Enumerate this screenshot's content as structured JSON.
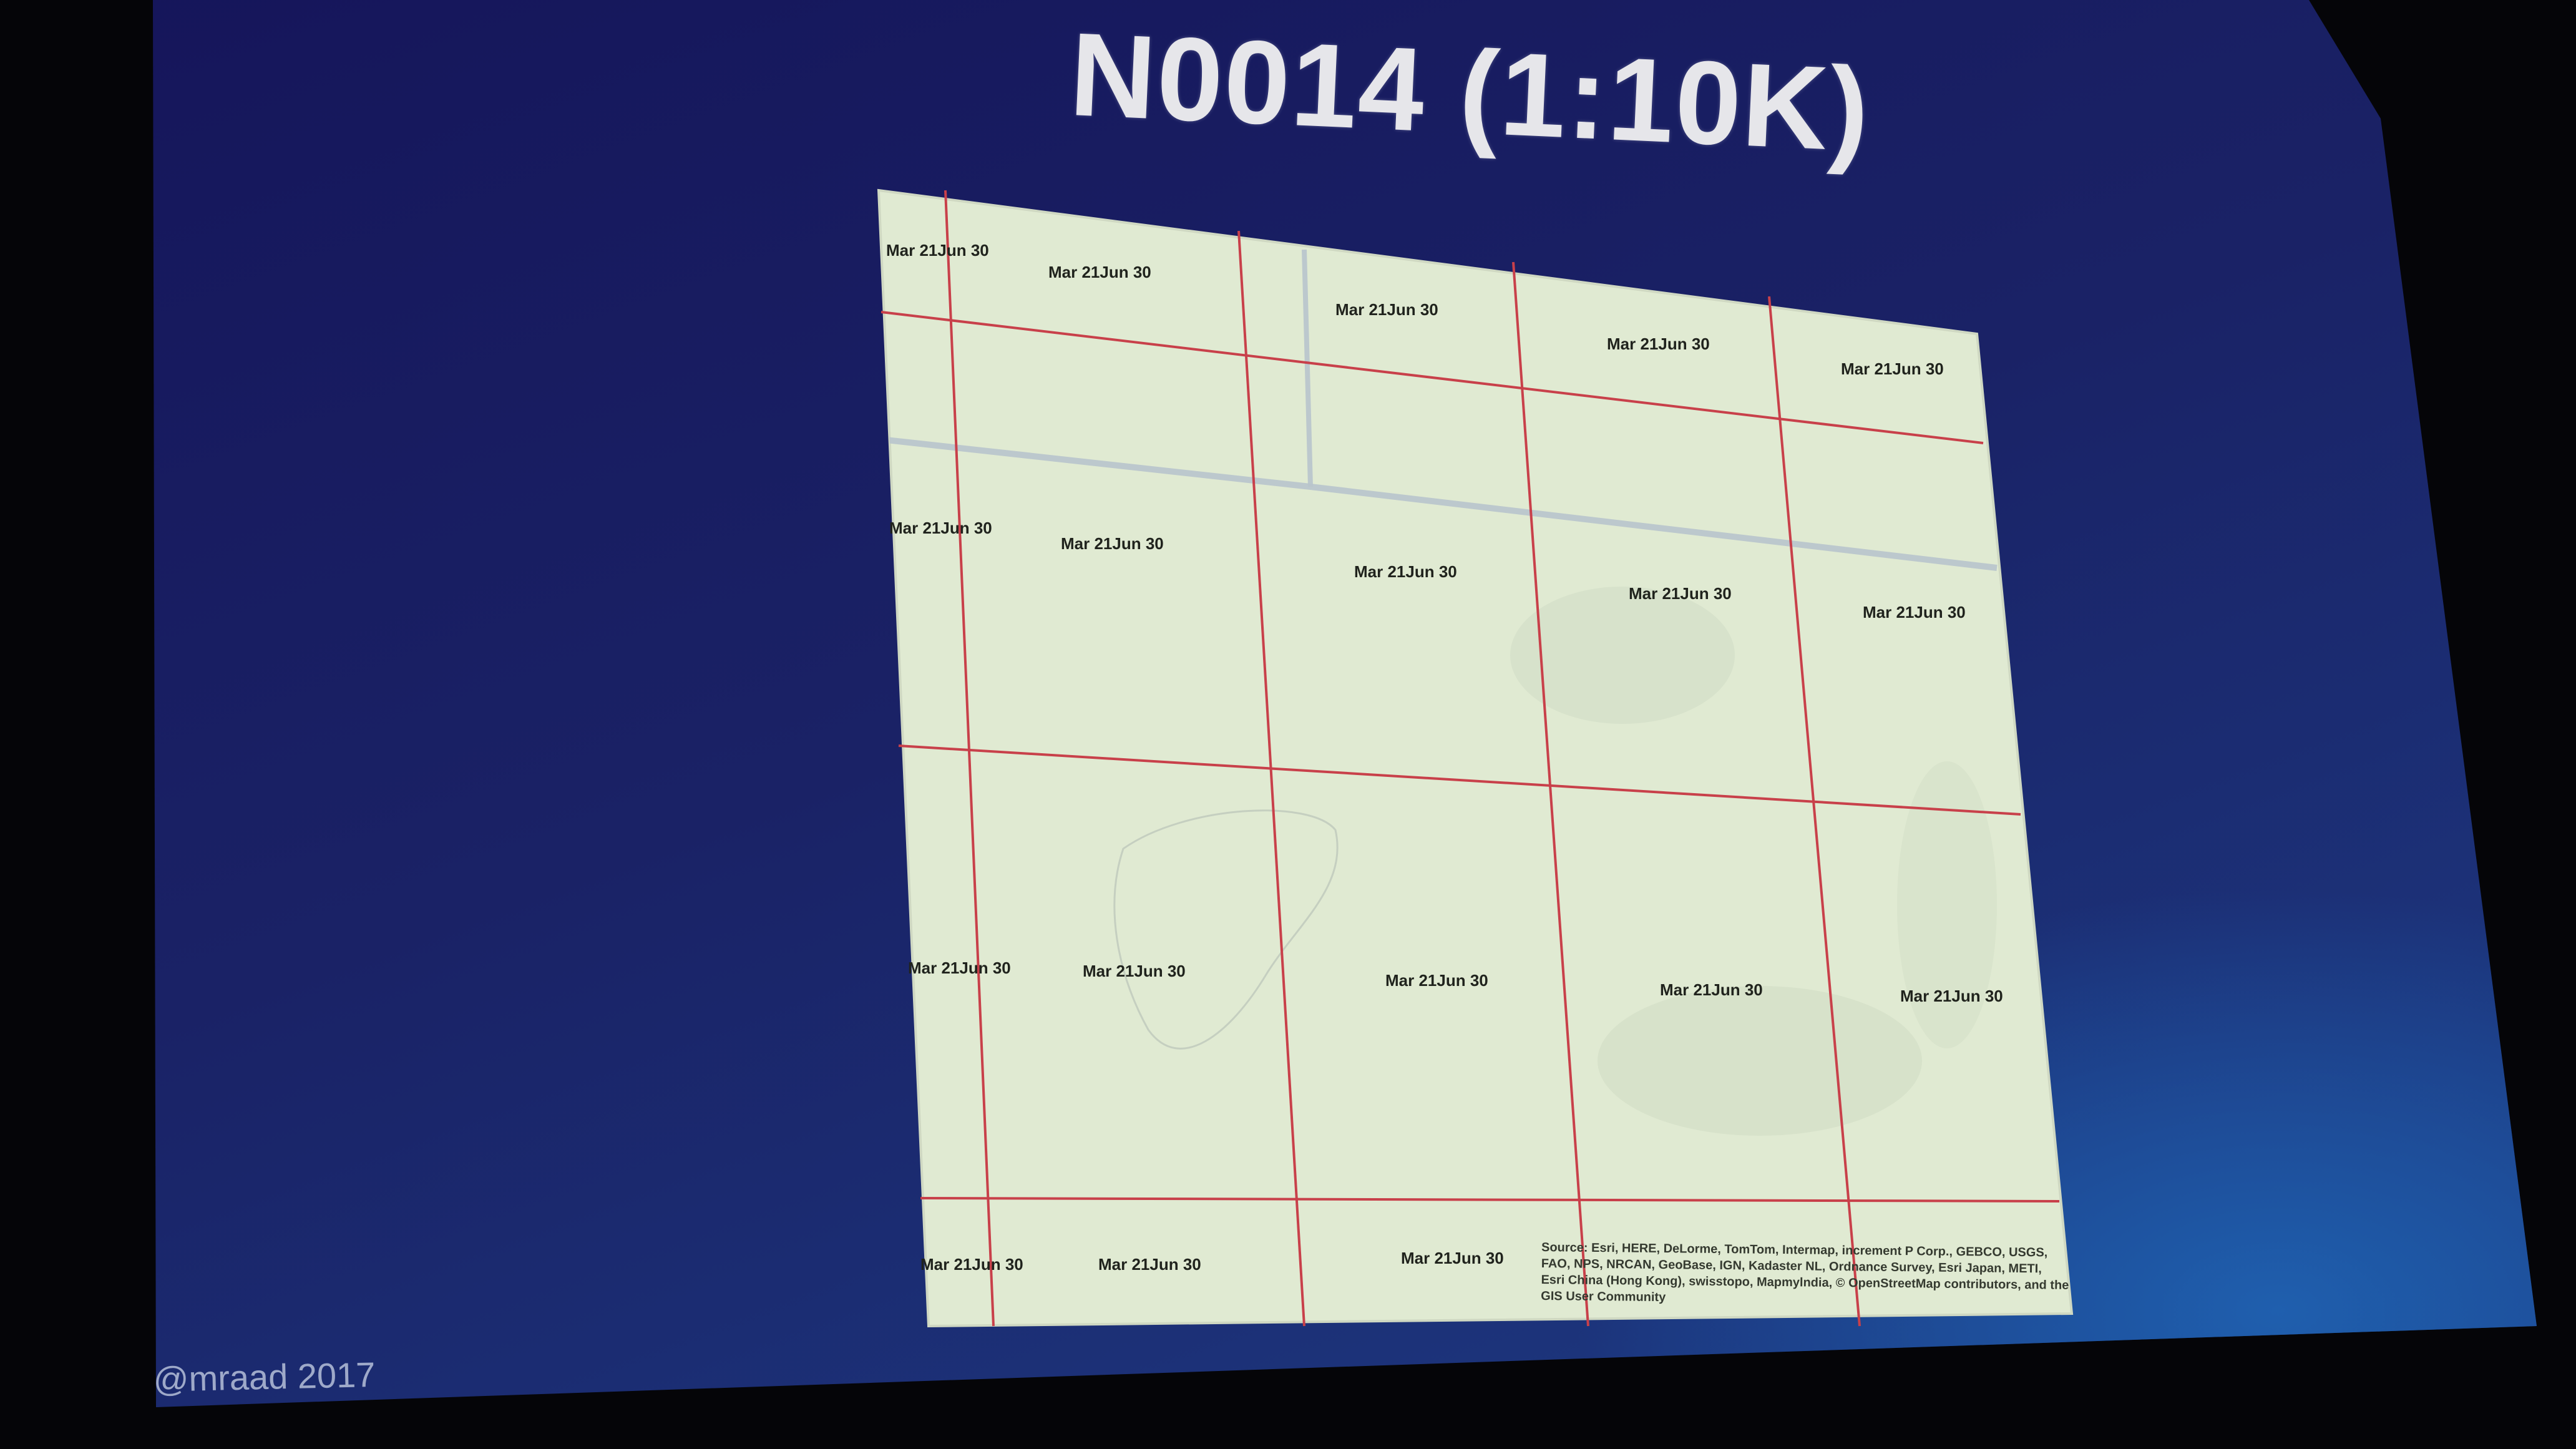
{
  "slide": {
    "title": "N0014 (1:10K)",
    "credit": "@mraad 2017"
  },
  "map": {
    "cell_label": "Mar 21Jun 30",
    "attribution_lines": [
      "Source: Esri, HERE, DeLorme, TomTom, Intermap, increment P Corp., GEBCO, USGS,",
      "FAO, NPS, NRCAN, GeoBase, IGN, Kadaster NL, Ordnance Survey, Esri Japan, METI,",
      "Esri China (Hong Kong), swisstopo, Mapmylndia, © OpenStreetMap contributors, and the",
      "GIS User Community"
    ],
    "colors": {
      "paper": "#e0ead2",
      "grid_line": "#c8404a",
      "road": "#b8c4cc"
    }
  }
}
